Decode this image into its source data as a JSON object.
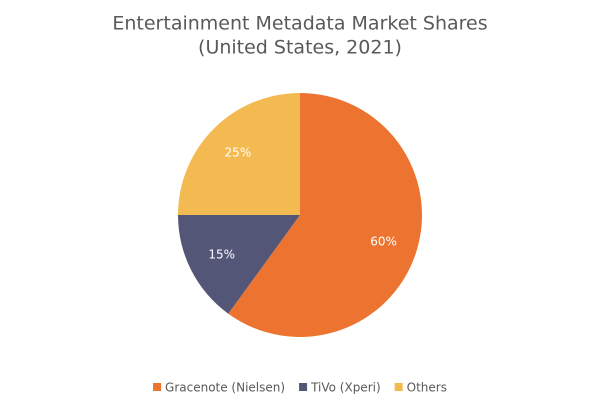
{
  "chart_data": {
    "type": "pie",
    "title": "Entertainment Metadata Market Shares",
    "subtitle": "(United States, 2021)",
    "categories": [
      "Gracenote (Nielsen)",
      "TiVo (Xperi)",
      "Others"
    ],
    "values": [
      60,
      15,
      25
    ],
    "value_labels": [
      "60%",
      "15%",
      "25%"
    ],
    "colors": [
      "#ed7430",
      "#535677",
      "#f4ba52"
    ],
    "legend": "bottom"
  }
}
